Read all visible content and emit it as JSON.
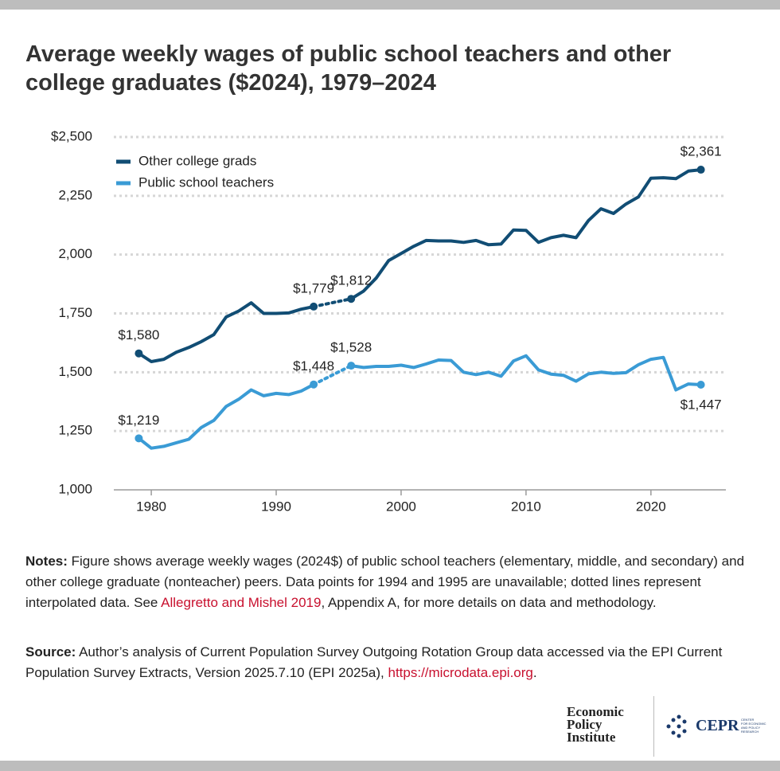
{
  "chart_data": {
    "type": "line",
    "title": "Average weekly wages of public school teachers and other college graduates ($2024), 1979–2024",
    "x": [
      1979,
      1980,
      1981,
      1982,
      1983,
      1984,
      1985,
      1986,
      1987,
      1988,
      1989,
      1990,
      1991,
      1992,
      1993,
      1994,
      1995,
      1996,
      1997,
      1998,
      1999,
      2000,
      2001,
      2002,
      2003,
      2004,
      2005,
      2006,
      2007,
      2008,
      2009,
      2010,
      2011,
      2012,
      2013,
      2014,
      2015,
      2016,
      2017,
      2018,
      2019,
      2020,
      2021,
      2022,
      2023,
      2024
    ],
    "series": [
      {
        "name": "Other college grads",
        "color": "#114d74",
        "values": [
          1580,
          1545,
          1555,
          1585,
          1605,
          1630,
          1660,
          1735,
          1760,
          1795,
          1750,
          1750,
          1752,
          1768,
          1779,
          null,
          null,
          1812,
          1845,
          1900,
          1975,
          2005,
          2035,
          2060,
          2058,
          2058,
          2052,
          2060,
          2042,
          2045,
          2105,
          2103,
          2052,
          2072,
          2082,
          2072,
          2145,
          2195,
          2175,
          2215,
          2245,
          2325,
          2327,
          2323,
          2355,
          2361
        ],
        "value_labels": [
          "$1,580",
          null,
          null,
          null,
          null,
          null,
          null,
          null,
          null,
          null,
          null,
          null,
          null,
          null,
          "$1,779",
          null,
          null,
          "$1,812",
          null,
          null,
          null,
          null,
          null,
          null,
          null,
          null,
          null,
          null,
          null,
          null,
          null,
          null,
          null,
          null,
          null,
          null,
          null,
          null,
          null,
          null,
          null,
          null,
          null,
          null,
          null,
          "$2,361"
        ]
      },
      {
        "name": "Public school teachers",
        "color": "#3a9bd5",
        "values": [
          1219,
          1177,
          1185,
          1200,
          1215,
          1265,
          1295,
          1355,
          1385,
          1425,
          1400,
          1410,
          1405,
          1420,
          1448,
          null,
          null,
          1528,
          1520,
          1525,
          1525,
          1530,
          1520,
          1535,
          1552,
          1550,
          1500,
          1490,
          1500,
          1483,
          1548,
          1570,
          1510,
          1492,
          1487,
          1462,
          1493,
          1500,
          1495,
          1498,
          1532,
          1555,
          1563,
          1425,
          1450,
          1447
        ],
        "value_labels": [
          "$1,219",
          null,
          null,
          null,
          null,
          null,
          null,
          null,
          null,
          null,
          null,
          null,
          null,
          null,
          "$1,448",
          null,
          null,
          "$1,528",
          null,
          null,
          null,
          null,
          null,
          null,
          null,
          null,
          null,
          null,
          null,
          null,
          null,
          null,
          null,
          null,
          null,
          null,
          null,
          null,
          null,
          null,
          null,
          null,
          null,
          null,
          null,
          "$1,447"
        ]
      }
    ],
    "xlim": [
      1977,
      2026
    ],
    "xticks": [
      1980,
      1990,
      2000,
      2010,
      2020
    ],
    "ylim": [
      1000,
      2500
    ],
    "yticks": [
      {
        "value": 1000,
        "label": "1,000"
      },
      {
        "value": 1250,
        "label": "1,250"
      },
      {
        "value": 1500,
        "label": "1,500"
      },
      {
        "value": 1750,
        "label": "1,750"
      },
      {
        "value": 2000,
        "label": "2,000"
      },
      {
        "value": 2250,
        "label": "2,250"
      },
      {
        "value": 2500,
        "label": "$2,500"
      }
    ],
    "grid": true,
    "legend": "top-left"
  },
  "notes": {
    "label": "Notes:",
    "text": " Figure shows average weekly wages (2024$) of public school teachers (elementary, middle, and secondary) and other college graduate (nonteacher) peers. Data points for 1994 and 1995 are unavailable; dotted lines represent interpolated data. See ",
    "link": "Allegretto and Mishel 2019",
    "text_after": ", Appendix A, for more details on data and methodology."
  },
  "source": {
    "label": "Source:",
    "text": " Author’s analysis of Current Population Survey Outgoing Rotation Group data accessed via the EPI Current Population Survey Extracts, Version 2025.7.10 (EPI 2025a), ",
    "link": "https://microdata.epi.org",
    "text_after": "."
  },
  "logos": {
    "epi": [
      "Economic",
      "Policy",
      "Institute"
    ],
    "cepr": "CEPR",
    "cepr_sub": [
      "CENTER",
      "FOR ECONOMIC",
      "AND POLICY",
      "RESEARCH"
    ]
  }
}
